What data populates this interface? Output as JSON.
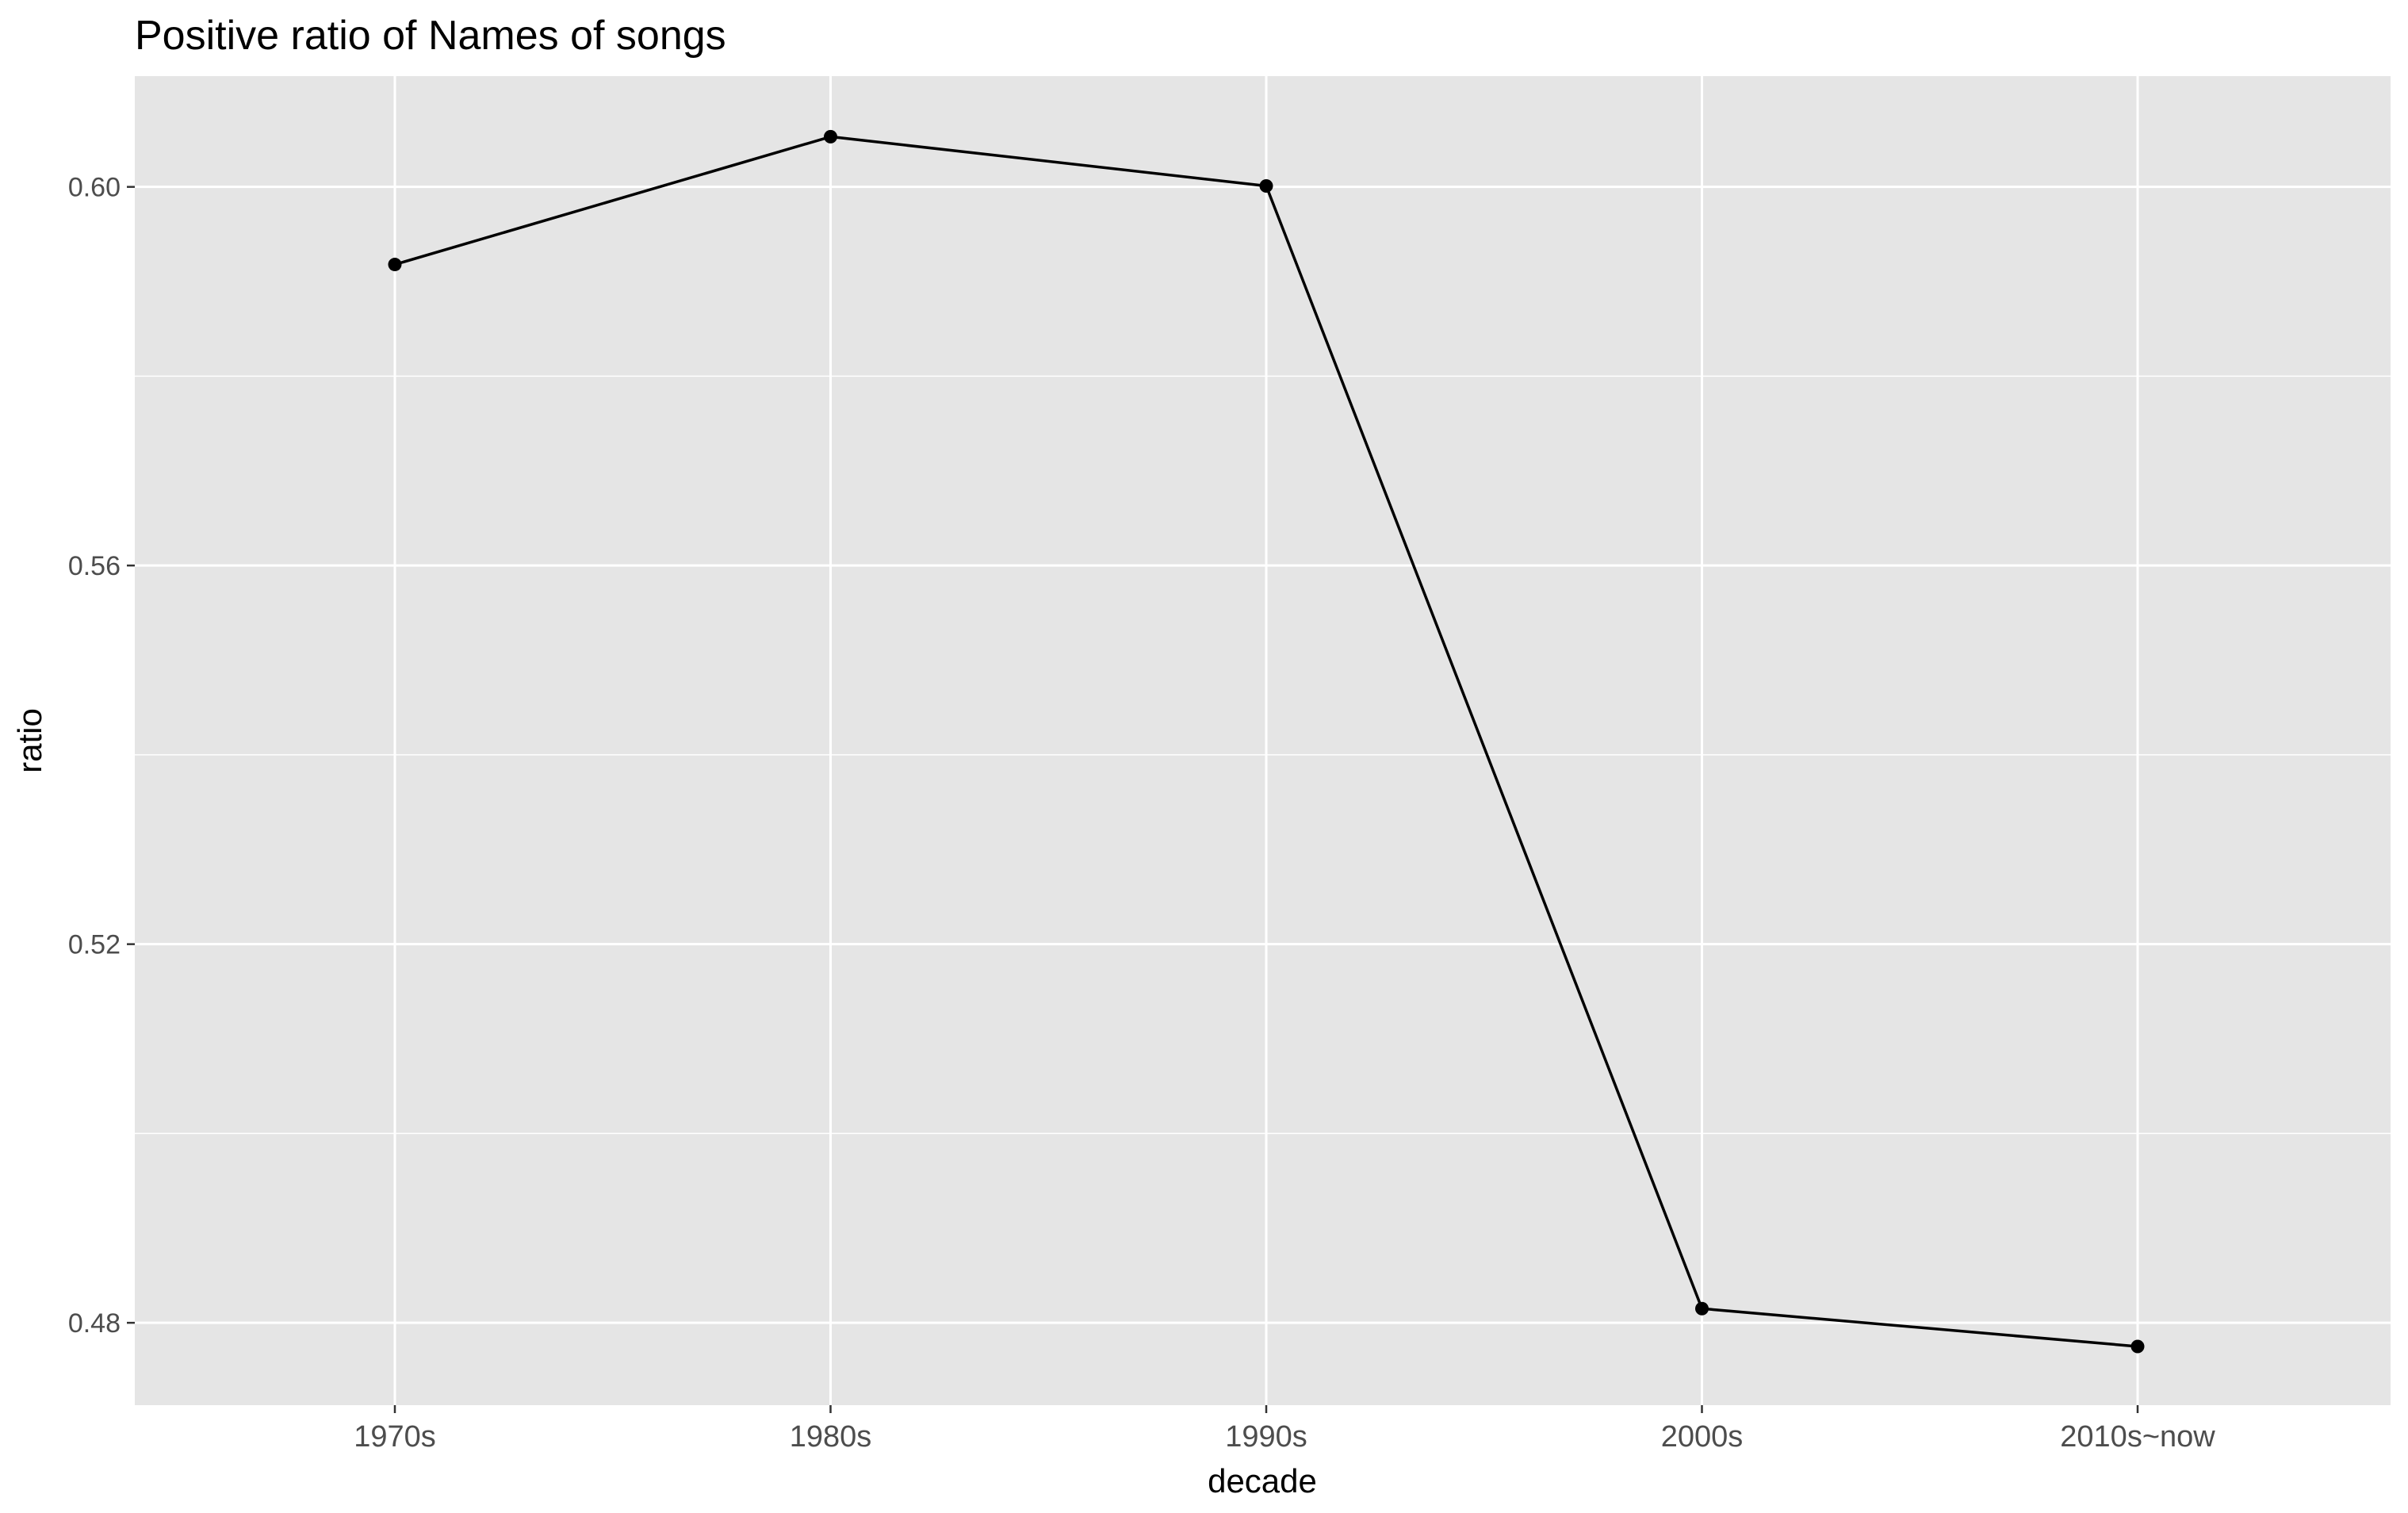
{
  "chart_data": {
    "type": "line",
    "title": "Positive ratio of Names of songs",
    "xlabel": "decade",
    "ylabel": "ratio",
    "categories": [
      "1970s",
      "1980s",
      "1990s",
      "2000s",
      "2010s~now"
    ],
    "series": [
      {
        "values": [
          0.5918,
          0.6053,
          0.6001,
          0.4815,
          0.4775
        ]
      }
    ],
    "ylim": [
      0.4713,
      0.6117
    ],
    "yticks": [
      "0.48",
      "0.52",
      "0.56",
      "0.60"
    ],
    "grid": true,
    "legend": "none",
    "colors": {
      "panel_background": "#e5e5e5",
      "grid": "#ffffff",
      "line": "#000000",
      "point": "#000000",
      "tick_text": "#4d4d4d"
    }
  }
}
